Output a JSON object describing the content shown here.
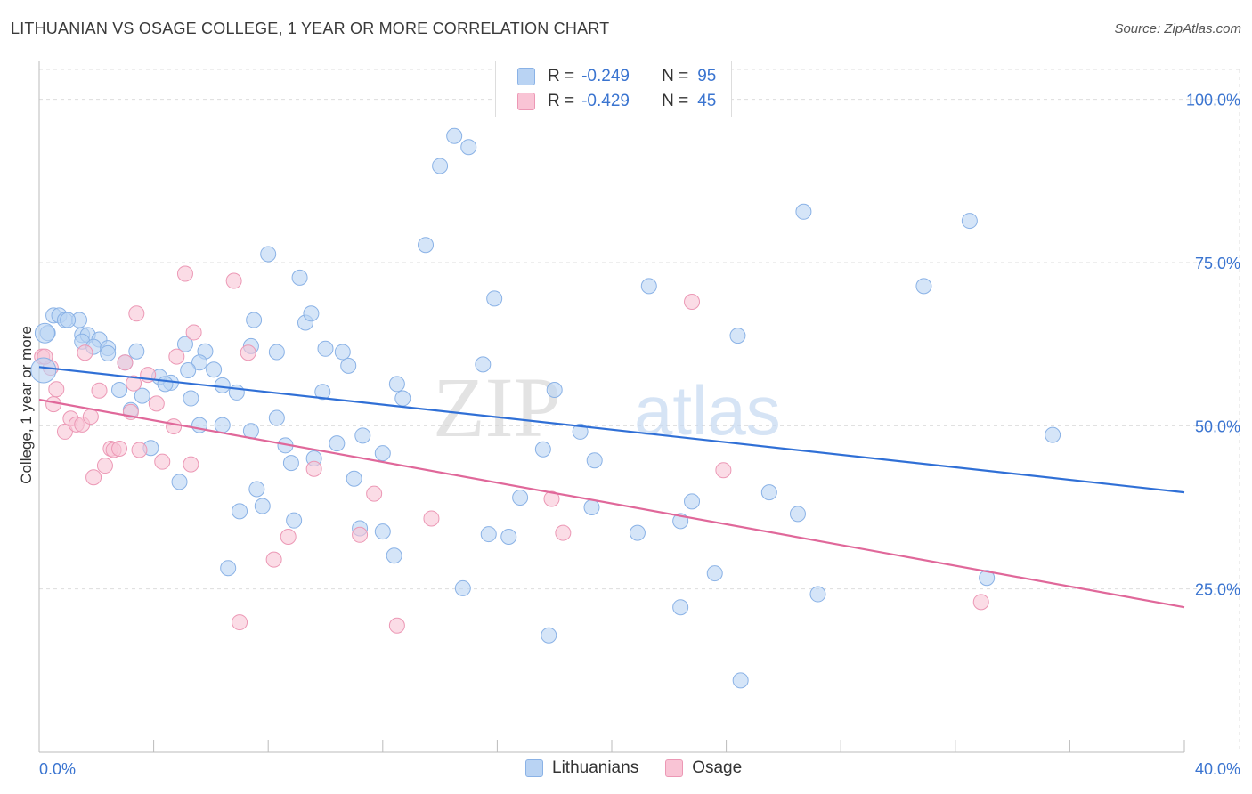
{
  "title": "LITHUANIAN VS OSAGE COLLEGE, 1 YEAR OR MORE CORRELATION CHART",
  "source": "Source: ZipAtlas.com",
  "watermark": {
    "zip": "ZIP",
    "atlas": "atlas"
  },
  "colors": {
    "blue_fill": "#b9d3f3",
    "blue_stroke": "#8ab2e6",
    "blue_line": "#2f6fd6",
    "pink_fill": "#f9c4d5",
    "pink_stroke": "#ec98b5",
    "pink_line": "#e0689a",
    "accent_text": "#3a74d0",
    "grid": "#dddddd"
  },
  "legend": {
    "rows": [
      {
        "r_label": "R =",
        "r_value": "-0.249",
        "n_label": "N =",
        "n_value": "95"
      },
      {
        "r_label": "R =",
        "r_value": "-0.429",
        "n_label": "N =",
        "n_value": "45"
      }
    ]
  },
  "bottom_legend": [
    "Lithuanians",
    "Osage"
  ],
  "chart_data": {
    "type": "scatter",
    "title": "LITHUANIAN VS OSAGE COLLEGE, 1 YEAR OR MORE CORRELATION CHART",
    "xlabel": "",
    "ylabel": "College, 1 year or more",
    "xlim": [
      0,
      40
    ],
    "ylim": [
      0,
      105
    ],
    "x_tick_labels": [
      "0.0%",
      "40.0%"
    ],
    "y_ticks": [
      25,
      50,
      75,
      100
    ],
    "y_tick_labels": [
      "25.0%",
      "50.0%",
      "75.0%",
      "100.0%"
    ],
    "grid": true,
    "legend_position": "top-center",
    "series": [
      {
        "name": "Lithuanians",
        "color": "#8ab2e6",
        "r": -0.249,
        "n": 95,
        "trend": {
          "x": [
            0,
            40
          ],
          "y": [
            59.0,
            39.8
          ]
        },
        "points": [
          [
            0.3,
            64.2
          ],
          [
            0.5,
            66.9
          ],
          [
            0.7,
            66.9
          ],
          [
            0.9,
            66.2
          ],
          [
            1.4,
            66.2
          ],
          [
            1.0,
            66.2
          ],
          [
            1.5,
            63.9
          ],
          [
            1.7,
            63.9
          ],
          [
            1.5,
            62.9
          ],
          [
            2.1,
            63.2
          ],
          [
            1.9,
            62.1
          ],
          [
            2.4,
            61.9
          ],
          [
            2.4,
            61.1
          ],
          [
            3.4,
            61.4
          ],
          [
            3.0,
            59.7
          ],
          [
            5.1,
            62.5
          ],
          [
            5.8,
            61.4
          ],
          [
            6.1,
            58.6
          ],
          [
            7.5,
            66.2
          ],
          [
            5.6,
            59.7
          ],
          [
            5.2,
            58.5
          ],
          [
            4.6,
            56.6
          ],
          [
            4.2,
            57.5
          ],
          [
            4.4,
            56.4
          ],
          [
            2.8,
            55.5
          ],
          [
            3.6,
            54.6
          ],
          [
            3.2,
            52.4
          ],
          [
            5.3,
            54.2
          ],
          [
            6.4,
            56.2
          ],
          [
            6.9,
            55.1
          ],
          [
            7.4,
            62.2
          ],
          [
            8.3,
            61.3
          ],
          [
            8.0,
            76.3
          ],
          [
            9.1,
            72.7
          ],
          [
            9.3,
            65.8
          ],
          [
            9.5,
            67.2
          ],
          [
            10.0,
            61.8
          ],
          [
            10.6,
            61.3
          ],
          [
            10.8,
            59.2
          ],
          [
            9.9,
            55.2
          ],
          [
            12.5,
            56.4
          ],
          [
            12.7,
            54.2
          ],
          [
            13.5,
            77.7
          ],
          [
            14.0,
            89.8
          ],
          [
            14.5,
            94.4
          ],
          [
            15.0,
            92.7
          ],
          [
            15.9,
            69.5
          ],
          [
            15.5,
            59.4
          ],
          [
            6.4,
            50.1
          ],
          [
            5.6,
            50.1
          ],
          [
            7.4,
            49.2
          ],
          [
            8.3,
            51.2
          ],
          [
            8.6,
            47.0
          ],
          [
            8.8,
            44.3
          ],
          [
            9.6,
            45.0
          ],
          [
            10.4,
            47.3
          ],
          [
            11.3,
            48.5
          ],
          [
            12.0,
            45.8
          ],
          [
            3.9,
            46.6
          ],
          [
            4.9,
            41.4
          ],
          [
            7.0,
            36.9
          ],
          [
            7.6,
            40.3
          ],
          [
            7.8,
            37.7
          ],
          [
            8.9,
            35.5
          ],
          [
            11.0,
            41.9
          ],
          [
            11.2,
            34.3
          ],
          [
            12.0,
            33.8
          ],
          [
            12.4,
            30.1
          ],
          [
            6.6,
            28.2
          ],
          [
            14.8,
            25.1
          ],
          [
            15.7,
            33.4
          ],
          [
            16.4,
            33.0
          ],
          [
            16.8,
            39.0
          ],
          [
            17.6,
            46.4
          ],
          [
            18.0,
            55.5
          ],
          [
            18.9,
            49.1
          ],
          [
            19.4,
            44.7
          ],
          [
            19.3,
            37.5
          ],
          [
            20.9,
            33.6
          ],
          [
            21.3,
            71.4
          ],
          [
            22.4,
            35.4
          ],
          [
            22.8,
            38.4
          ],
          [
            23.6,
            27.4
          ],
          [
            24.4,
            63.8
          ],
          [
            24.5,
            11.0
          ],
          [
            25.5,
            39.8
          ],
          [
            26.5,
            36.5
          ],
          [
            26.7,
            82.8
          ],
          [
            27.2,
            24.2
          ],
          [
            30.9,
            71.4
          ],
          [
            32.5,
            81.4
          ],
          [
            33.1,
            26.7
          ],
          [
            35.4,
            48.6
          ],
          [
            17.8,
            17.9
          ],
          [
            22.4,
            22.2
          ]
        ]
      },
      {
        "name": "Osage",
        "color": "#ec98b5",
        "r": -0.429,
        "n": 45,
        "trend": {
          "x": [
            0,
            40
          ],
          "y": [
            54.0,
            22.2
          ]
        },
        "points": [
          [
            0.1,
            60.6
          ],
          [
            0.4,
            58.9
          ],
          [
            0.5,
            53.3
          ],
          [
            0.6,
            55.6
          ],
          [
            0.9,
            49.1
          ],
          [
            1.1,
            51.1
          ],
          [
            1.3,
            50.2
          ],
          [
            1.5,
            50.2
          ],
          [
            1.6,
            61.2
          ],
          [
            1.8,
            51.4
          ],
          [
            1.9,
            42.1
          ],
          [
            2.1,
            55.4
          ],
          [
            2.3,
            43.9
          ],
          [
            2.5,
            46.5
          ],
          [
            2.6,
            46.3
          ],
          [
            2.8,
            46.5
          ],
          [
            3.0,
            59.7
          ],
          [
            3.2,
            52.1
          ],
          [
            3.3,
            56.5
          ],
          [
            3.4,
            67.2
          ],
          [
            3.5,
            46.3
          ],
          [
            3.8,
            57.8
          ],
          [
            4.1,
            53.4
          ],
          [
            4.3,
            44.5
          ],
          [
            4.7,
            49.9
          ],
          [
            4.8,
            60.6
          ],
          [
            5.1,
            73.3
          ],
          [
            5.3,
            44.1
          ],
          [
            5.4,
            64.3
          ],
          [
            6.8,
            72.2
          ],
          [
            7.0,
            19.9
          ],
          [
            7.3,
            61.2
          ],
          [
            8.2,
            29.5
          ],
          [
            8.7,
            33.0
          ],
          [
            9.6,
            43.4
          ],
          [
            11.2,
            33.3
          ],
          [
            11.7,
            39.6
          ],
          [
            12.5,
            19.4
          ],
          [
            13.7,
            35.8
          ],
          [
            17.9,
            38.8
          ],
          [
            18.3,
            33.6
          ],
          [
            22.8,
            69.0
          ],
          [
            23.9,
            43.2
          ],
          [
            32.9,
            23.0
          ],
          [
            0.2,
            60.6
          ]
        ]
      }
    ]
  }
}
